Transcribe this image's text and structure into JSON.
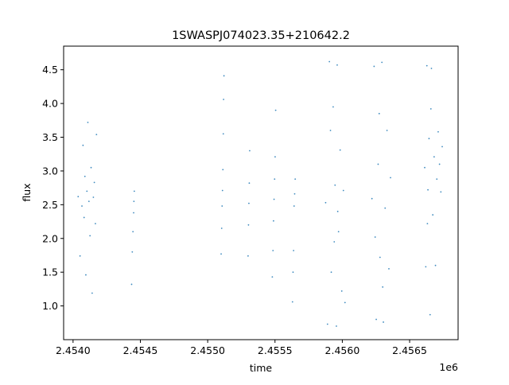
{
  "chart_data": {
    "type": "scatter",
    "title": "1SWASPJ074023.35+210642.2",
    "xlabel": "time",
    "ylabel": "flux",
    "x_offset_label": "1e6",
    "xlim": [
      2453930,
      2456860
    ],
    "ylim": [
      0.5,
      4.85
    ],
    "x_ticks": [
      2454000,
      2454500,
      2455000,
      2455500,
      2456000,
      2456500
    ],
    "x_tick_labels": [
      "2.4540",
      "2.4545",
      "2.4550",
      "2.4555",
      "2.4560",
      "2.4565"
    ],
    "y_ticks": [
      1.0,
      1.5,
      2.0,
      2.5,
      3.0,
      3.5,
      4.0,
      4.5
    ],
    "y_tick_labels": [
      "1.0",
      "1.5",
      "2.0",
      "2.5",
      "3.0",
      "3.5",
      "4.0",
      "4.5"
    ],
    "grid": false,
    "legend": "none",
    "marker_color": "#1f77b4",
    "series": [
      {
        "x": [
          2454038,
          2454052,
          2454066,
          2454074,
          2454082,
          2454088,
          2454095,
          2454103,
          2454110,
          2454118,
          2454126,
          2454134,
          2454142,
          2454151,
          2454158,
          2454166,
          2454174
        ],
        "y": [
          2.62,
          1.74,
          2.48,
          3.38,
          2.31,
          2.92,
          1.46,
          2.7,
          3.72,
          2.55,
          2.04,
          3.05,
          1.19,
          2.61,
          2.83,
          2.22,
          3.54
        ]
      },
      {
        "x": [
          2454435,
          2454440,
          2454445,
          2454450,
          2454452,
          2454455
        ],
        "y": [
          1.32,
          1.8,
          2.1,
          2.38,
          2.55,
          2.7
        ]
      },
      {
        "x": [
          2455100,
          2455104,
          2455107,
          2455110,
          2455113,
          2455116,
          2455118,
          2455121
        ],
        "y": [
          1.77,
          2.15,
          2.48,
          2.71,
          3.02,
          3.55,
          4.06,
          4.41
        ]
      },
      {
        "x": [
          2455300,
          2455303,
          2455306,
          2455309,
          2455312
        ],
        "y": [
          1.74,
          2.2,
          2.52,
          2.82,
          3.3
        ]
      },
      {
        "x": [
          2455480,
          2455485,
          2455489,
          2455493,
          2455497,
          2455501,
          2455505
        ],
        "y": [
          1.43,
          1.82,
          2.26,
          2.58,
          2.88,
          3.21,
          3.9
        ]
      },
      {
        "x": [
          2455630,
          2455634,
          2455638,
          2455642,
          2455646,
          2455650
        ],
        "y": [
          1.06,
          1.5,
          1.82,
          2.48,
          2.66,
          2.88
        ]
      },
      {
        "x": [
          2455876,
          2455890,
          2455904,
          2455918,
          2455932,
          2455946,
          2455956,
          2455962,
          2455972,
          2455984,
          2455996,
          2456008,
          2456020,
          2455912,
          2455940,
          2455966
        ],
        "y": [
          2.53,
          0.73,
          4.62,
          1.5,
          3.95,
          2.79,
          0.7,
          4.57,
          2.1,
          3.31,
          1.22,
          2.71,
          1.05,
          3.6,
          1.95,
          2.4
        ]
      },
      {
        "x": [
          2456220,
          2456236,
          2456252,
          2456266,
          2456280,
          2456294,
          2456305,
          2456318,
          2456332,
          2456346,
          2456358,
          2456244,
          2456274,
          2456300
        ],
        "y": [
          2.59,
          4.55,
          0.8,
          3.1,
          1.72,
          4.61,
          0.76,
          2.45,
          3.6,
          1.55,
          2.9,
          2.02,
          3.85,
          1.28
        ]
      },
      {
        "x": [
          2456612,
          2456620,
          2456628,
          2456636,
          2456644,
          2456652,
          2456662,
          2456672,
          2456682,
          2456692,
          2456702,
          2456712,
          2456722,
          2456732,
          2456742,
          2456632,
          2456658
        ],
        "y": [
          3.05,
          1.58,
          4.56,
          2.72,
          3.48,
          0.87,
          4.52,
          2.35,
          3.21,
          1.6,
          2.88,
          3.58,
          3.1,
          2.69,
          3.36,
          2.22,
          3.92
        ]
      }
    ]
  }
}
